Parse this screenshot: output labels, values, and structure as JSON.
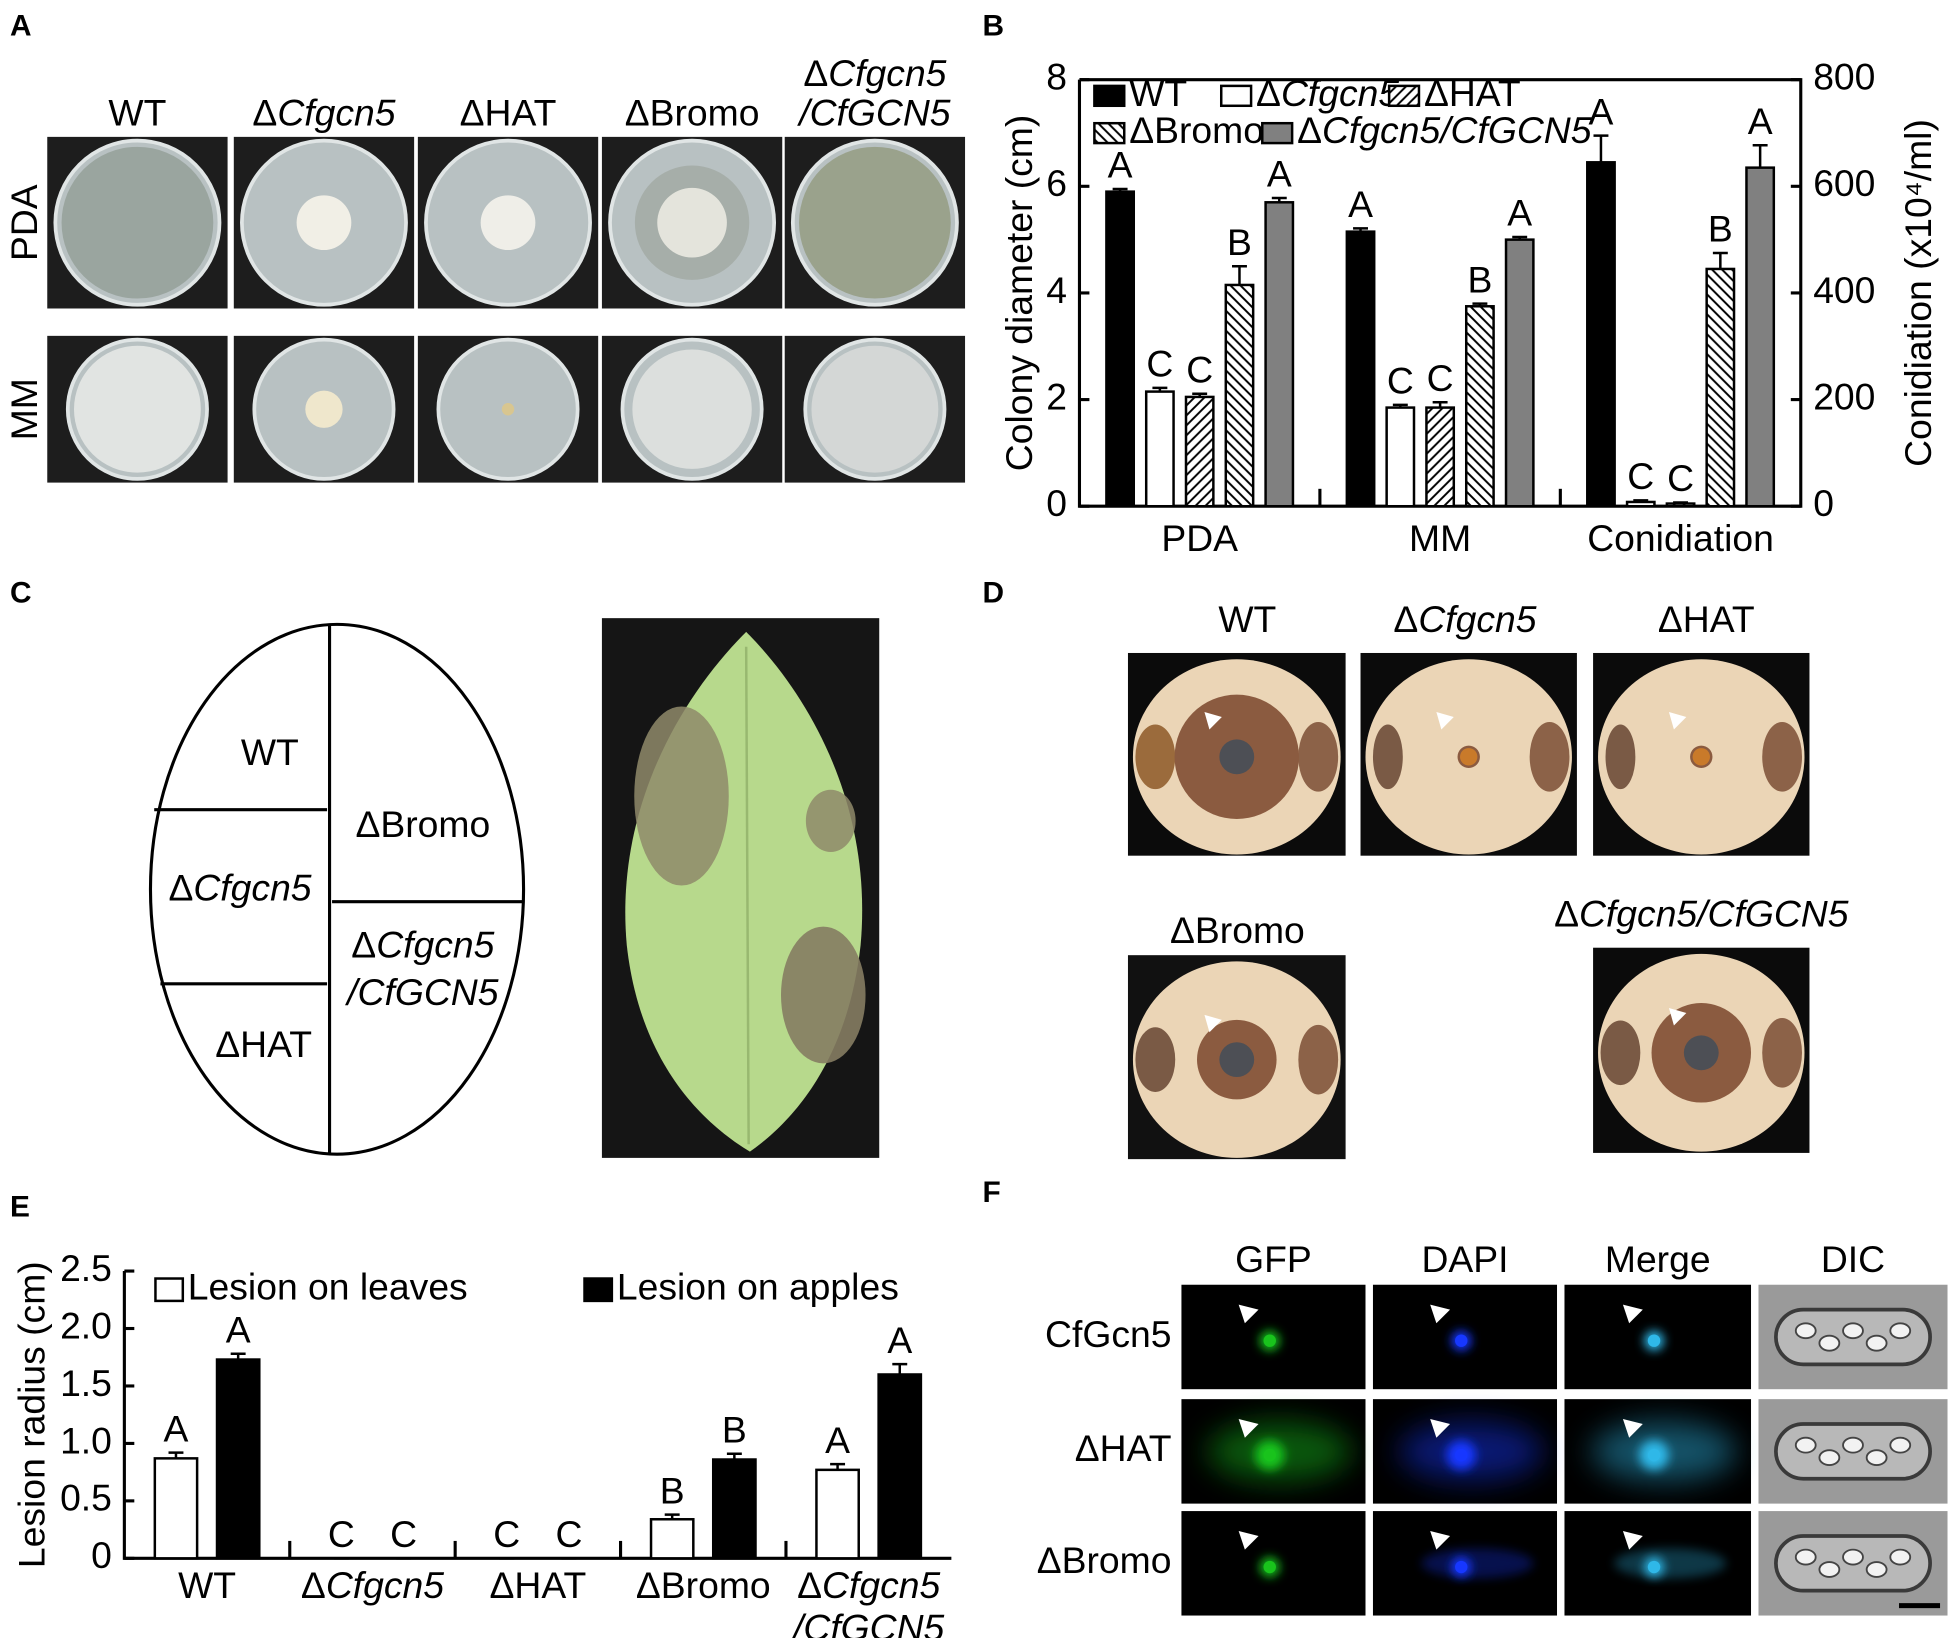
{
  "panel_labels": [
    "A",
    "B",
    "C",
    "D",
    "E",
    "F"
  ],
  "panel_a": {
    "columns": [
      "WT",
      "ΔCfgcn5",
      "ΔHAT",
      "ΔBromo",
      [
        "ΔCfgcn5",
        "/CfGCN5"
      ]
    ],
    "rows": [
      "PDA",
      "MM"
    ]
  },
  "chart_data": [
    {
      "type": "bar",
      "categories": [
        "PDA",
        "MM",
        "Conidiation"
      ],
      "category_axes": [
        "y",
        "y",
        "y2"
      ],
      "ylabel": "Colony diameter (cm)",
      "y2label": "Conidiation (x10⁴/ml)",
      "ylim": [
        0,
        8
      ],
      "yticks": [
        0,
        2,
        4,
        6,
        8
      ],
      "y2lim": [
        0,
        800
      ],
      "y2ticks": [
        0,
        200,
        400,
        600,
        800
      ],
      "series": [
        {
          "name": "WT",
          "color": "#000000",
          "values": [
            5.9,
            5.15,
            645
          ],
          "errors": [
            0.05,
            0.06,
            50
          ],
          "letters": [
            "A",
            "A",
            "A"
          ]
        },
        {
          "name": "ΔCfgcn5",
          "color": "#ffffff",
          "values": [
            2.15,
            1.85,
            8
          ],
          "errors": [
            0.07,
            0.05,
            3
          ],
          "letters": [
            "C",
            "C",
            "C"
          ]
        },
        {
          "name": "ΔHAT",
          "color": "#ffffff",
          "hatch": "forward",
          "values": [
            2.05,
            1.85,
            5
          ],
          "errors": [
            0.06,
            0.1,
            2
          ],
          "letters": [
            "C",
            "C",
            "C"
          ]
        },
        {
          "name": "ΔBromo",
          "color": "#ffffff",
          "hatch": "back",
          "values": [
            4.15,
            3.75,
            445
          ],
          "errors": [
            0.35,
            0.05,
            30
          ],
          "letters": [
            "B",
            "B",
            "B"
          ]
        },
        {
          "name": "ΔCfgcn5/CfGCN5",
          "color": "#808080",
          "values": [
            5.7,
            5.0,
            635
          ],
          "errors": [
            0.08,
            0.05,
            42
          ],
          "letters": [
            "A",
            "A",
            "A"
          ]
        }
      ]
    },
    {
      "type": "bar",
      "categories": [
        "WT",
        "ΔCfgcn5",
        "ΔHAT",
        "ΔBromo",
        [
          "ΔCfgcn5",
          "/CfGCN5"
        ]
      ],
      "ylabel": "Lesion radius (cm)",
      "ylim": [
        0,
        2.5
      ],
      "yticks": [
        0,
        0.5,
        {
          "value": 1,
          "label": "1.0"
        },
        1.5,
        {
          "value": 2,
          "label": "2.0"
        },
        2.5
      ],
      "series": [
        {
          "name": "Lesion on leaves",
          "color": "#ffffff",
          "values": [
            0.87,
            0,
            0,
            0.34,
            0.77
          ],
          "errors": [
            0.05,
            0,
            0,
            0.04,
            0.05
          ],
          "letters": [
            "A",
            "C",
            "C",
            "B",
            "A"
          ]
        },
        {
          "name": "Lesion on apples",
          "color": "#000000",
          "values": [
            1.73,
            0,
            0,
            0.86,
            1.6
          ],
          "errors": [
            0.05,
            0,
            0,
            0.05,
            0.09
          ],
          "letters": [
            "A",
            "C",
            "C",
            "B",
            "A"
          ]
        }
      ]
    }
  ],
  "panel_c": {
    "sections": [
      "WT",
      "ΔCfgcn5",
      "ΔHAT",
      "ΔBromo",
      [
        "ΔCfgcn5",
        "/CfGCN5"
      ]
    ]
  },
  "panel_d": {
    "labels": [
      "WT",
      "ΔCfgcn5",
      "ΔHAT",
      "ΔBromo",
      "ΔCfgcn5/CfGCN5"
    ]
  },
  "panel_f": {
    "columns": [
      "GFP",
      "DAPI",
      "Merge",
      "DIC"
    ],
    "rows": [
      "CfGcn5",
      "ΔHAT",
      "ΔBromo"
    ]
  }
}
